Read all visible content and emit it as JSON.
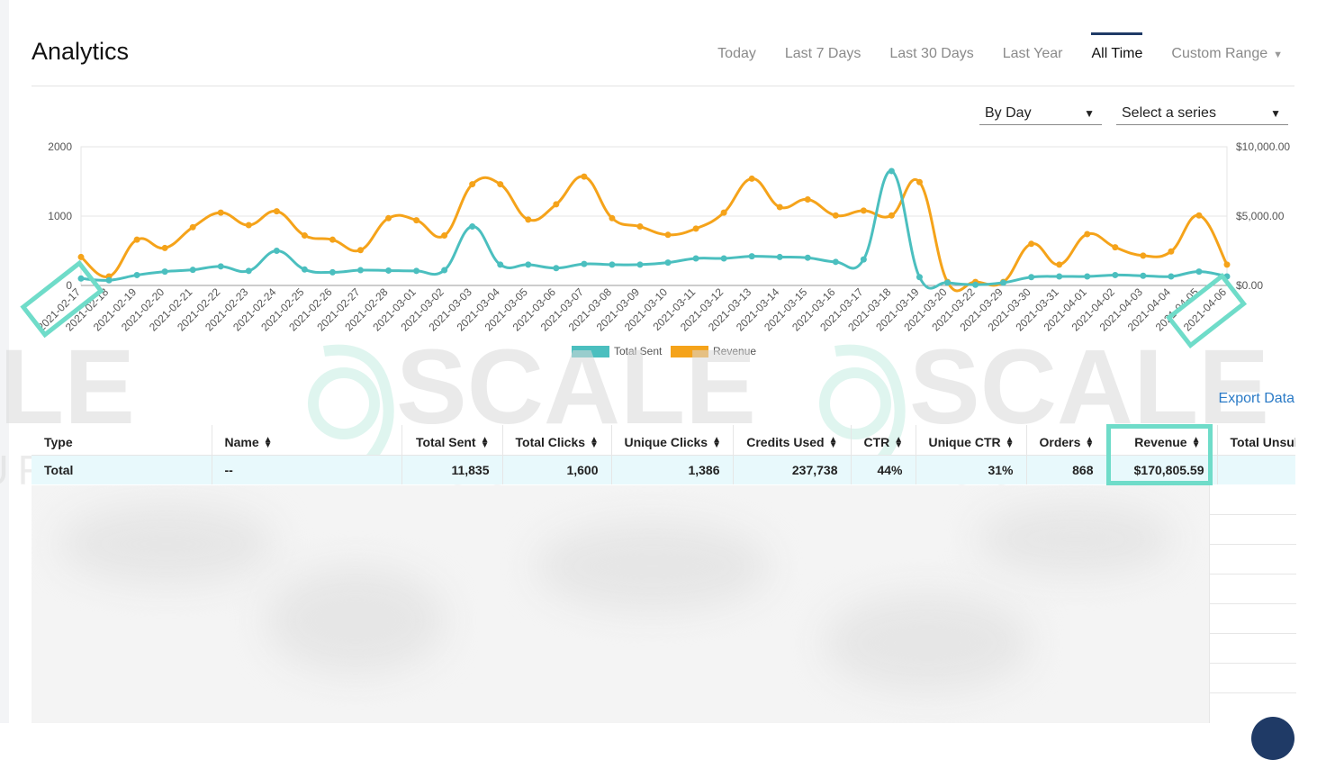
{
  "page": {
    "title": "Analytics"
  },
  "range_tabs": [
    {
      "label": "Today",
      "active": false
    },
    {
      "label": "Last 7 Days",
      "active": false
    },
    {
      "label": "Last 30 Days",
      "active": false
    },
    {
      "label": "Last Year",
      "active": false
    },
    {
      "label": "All Time",
      "active": true
    },
    {
      "label": "Custom Range",
      "active": false,
      "dropdown": true
    }
  ],
  "controls": {
    "period_select": "By Day",
    "series_select": "Select a series"
  },
  "watermark": {
    "text": "SCALE",
    "subtext": "YOUR BRAND"
  },
  "chart_data": {
    "type": "line",
    "x": [
      "2021-02-17",
      "2021-02-18",
      "2021-02-19",
      "2021-02-20",
      "2021-02-21",
      "2021-02-22",
      "2021-02-23",
      "2021-02-24",
      "2021-02-25",
      "2021-02-26",
      "2021-02-27",
      "2021-02-28",
      "2021-03-01",
      "2021-03-02",
      "2021-03-03",
      "2021-03-04",
      "2021-03-05",
      "2021-03-06",
      "2021-03-07",
      "2021-03-08",
      "2021-03-09",
      "2021-03-10",
      "2021-03-11",
      "2021-03-12",
      "2021-03-13",
      "2021-03-14",
      "2021-03-15",
      "2021-03-16",
      "2021-03-17",
      "2021-03-18",
      "2021-03-19",
      "2021-03-20",
      "2021-03-22",
      "2021-03-29",
      "2021-03-30",
      "2021-03-31",
      "2021-04-01",
      "2021-04-02",
      "2021-04-03",
      "2021-04-04",
      "2021-04-05",
      "2021-04-06"
    ],
    "series": [
      {
        "name": "Total Sent",
        "axis": "left",
        "color": "#4bbfbf",
        "values": [
          100,
          75,
          150,
          200,
          225,
          275,
          210,
          500,
          230,
          190,
          220,
          215,
          210,
          220,
          850,
          300,
          300,
          250,
          310,
          300,
          300,
          330,
          390,
          390,
          420,
          410,
          400,
          340,
          375,
          1650,
          120,
          40,
          10,
          40,
          120,
          130,
          130,
          150,
          140,
          130,
          200,
          130
        ]
      },
      {
        "name": "Revenue",
        "axis": "right",
        "color": "#f5a31a",
        "values": [
          2050,
          650,
          3300,
          2700,
          4200,
          5250,
          4350,
          5350,
          3600,
          3300,
          2550,
          4850,
          4700,
          3600,
          7300,
          7300,
          4750,
          5850,
          7850,
          4850,
          4250,
          3650,
          4100,
          5250,
          7700,
          5650,
          6200,
          5050,
          5400,
          5050,
          7450,
          250,
          250,
          250,
          3000,
          1500,
          3700,
          2750,
          2150,
          2450,
          5050,
          1500
        ]
      }
    ],
    "y_left": {
      "ticks": [
        "0",
        "1000",
        "2000"
      ],
      "range": [
        0,
        2000
      ]
    },
    "y_right": {
      "ticks": [
        "$0.00",
        "$5,000.00",
        "$10,000.00"
      ],
      "range": [
        0,
        10000
      ]
    },
    "legend_position": "bottom",
    "grid": true
  },
  "export_label": "Export Data",
  "table": {
    "columns": [
      {
        "label": "Type",
        "sortable": false
      },
      {
        "label": "Name",
        "sortable": true
      },
      {
        "label": "Total Sent",
        "sortable": true
      },
      {
        "label": "Total Clicks",
        "sortable": true
      },
      {
        "label": "Unique Clicks",
        "sortable": true
      },
      {
        "label": "Credits Used",
        "sortable": true
      },
      {
        "label": "CTR",
        "sortable": true
      },
      {
        "label": "Unique CTR",
        "sortable": true
      },
      {
        "label": "Orders",
        "sortable": true
      },
      {
        "label": "Revenue",
        "sortable": true
      },
      {
        "label": "Total Unsub",
        "sortable": false
      }
    ],
    "total_row": [
      "Total",
      "--",
      "11,835",
      "1,600",
      "1,386",
      "237,738",
      "44%",
      "31%",
      "868",
      "$170,805.59",
      ""
    ]
  }
}
